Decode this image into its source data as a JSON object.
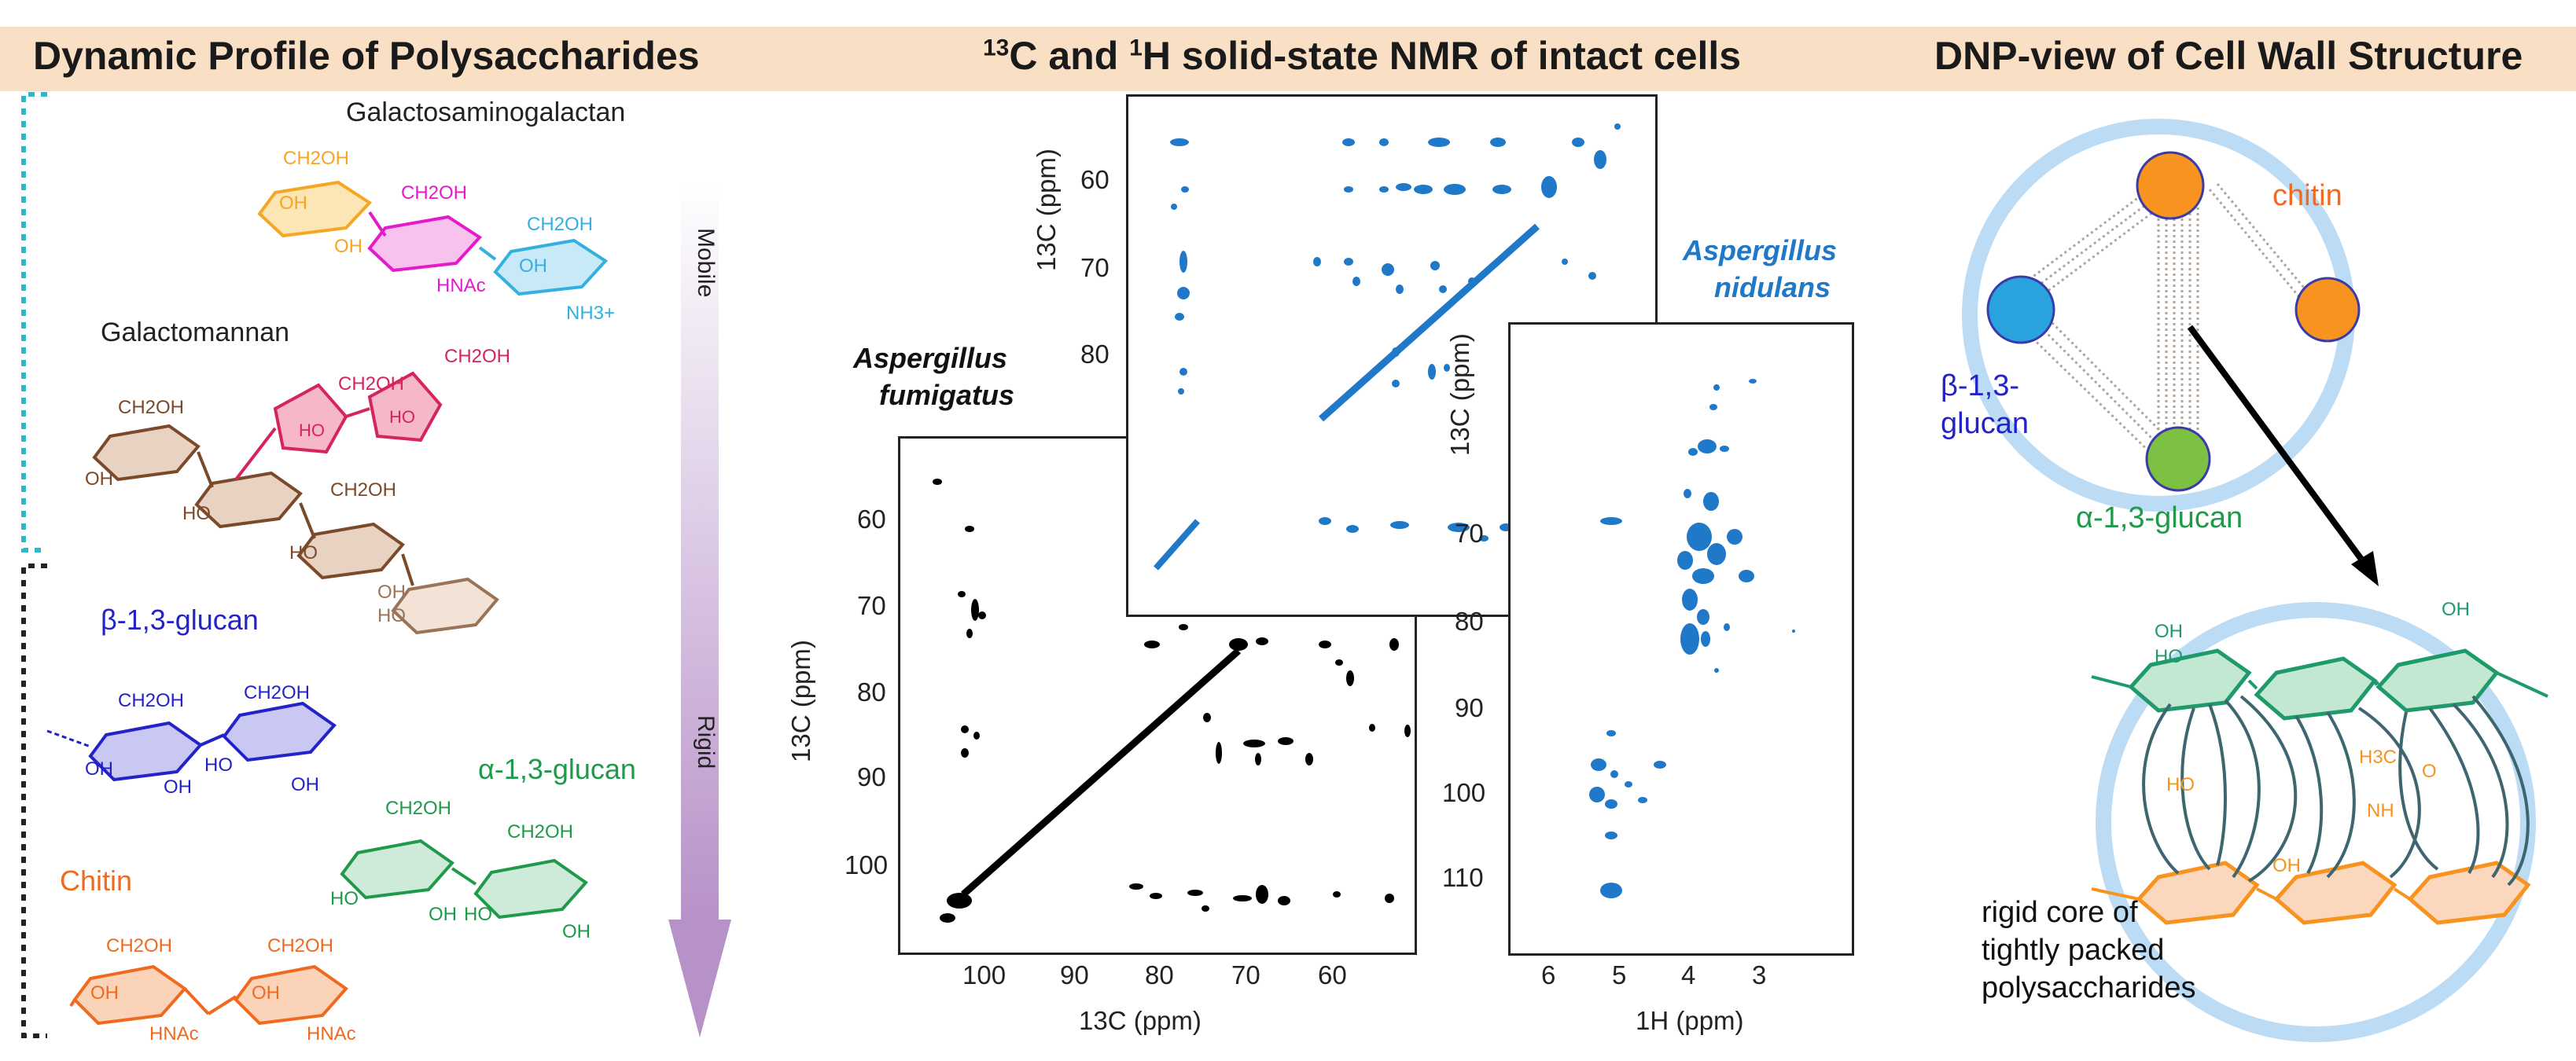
{
  "header": {
    "left_title": "Dynamic Profile of Polysaccharides",
    "center_title_pre": "13",
    "center_title_mid1": "C and ",
    "center_title_sup2": "1",
    "center_title_rest": "H solid-state NMR of intact cells",
    "right_title": "DNP-view of Cell Wall Structure"
  },
  "polysaccharides": {
    "gag_label": "Galactosaminogalactan",
    "gm_label": "Galactomannan",
    "beta_label": "β-1,3-glucan",
    "alpha_label": "α-1,3-glucan",
    "chitin_label": "Chitin",
    "mobile_label": "Mobile",
    "rigid_label": "Rigid",
    "ch2oh": "CH2OH",
    "oh": "OH",
    "ho": "HO",
    "hnac": "HNAc",
    "nh3": "NH3+"
  },
  "nmr": {
    "fumigatus_label_1": "Aspergillus",
    "fumigatus_label_2": "fumigatus",
    "nidulans_label_1": "Aspergillus",
    "nidulans_label_2": "nidulans",
    "c13_axis": "13C (ppm)",
    "h1_axis": "1H (ppm)",
    "fum_x_ticks": [
      "100",
      "90",
      "80",
      "70",
      "60"
    ],
    "fum_y_ticks": [
      "60",
      "70",
      "80",
      "90",
      "100"
    ],
    "inset_y_ticks": [
      "60",
      "70",
      "80"
    ],
    "nid_x_ticks": [
      "6",
      "5",
      "4",
      "3"
    ],
    "nid_y_ticks": [
      "70",
      "80",
      "90",
      "100",
      "110"
    ]
  },
  "dnp": {
    "chitin_label": "chitin",
    "beta_label_1": "β-1,3-",
    "beta_label_2": "glucan",
    "alpha_label": "α-1,3-glucan",
    "core_line1": "rigid core of",
    "core_line2": "tightly packed",
    "core_line3": "polysaccharides",
    "nh": "NH",
    "h3c": "H3C",
    "o": "O",
    "colors": {
      "chitin": "#f7931e",
      "beta": "#29a3dd",
      "alpha": "#7dc142",
      "ring": "#bcdcf5"
    }
  }
}
